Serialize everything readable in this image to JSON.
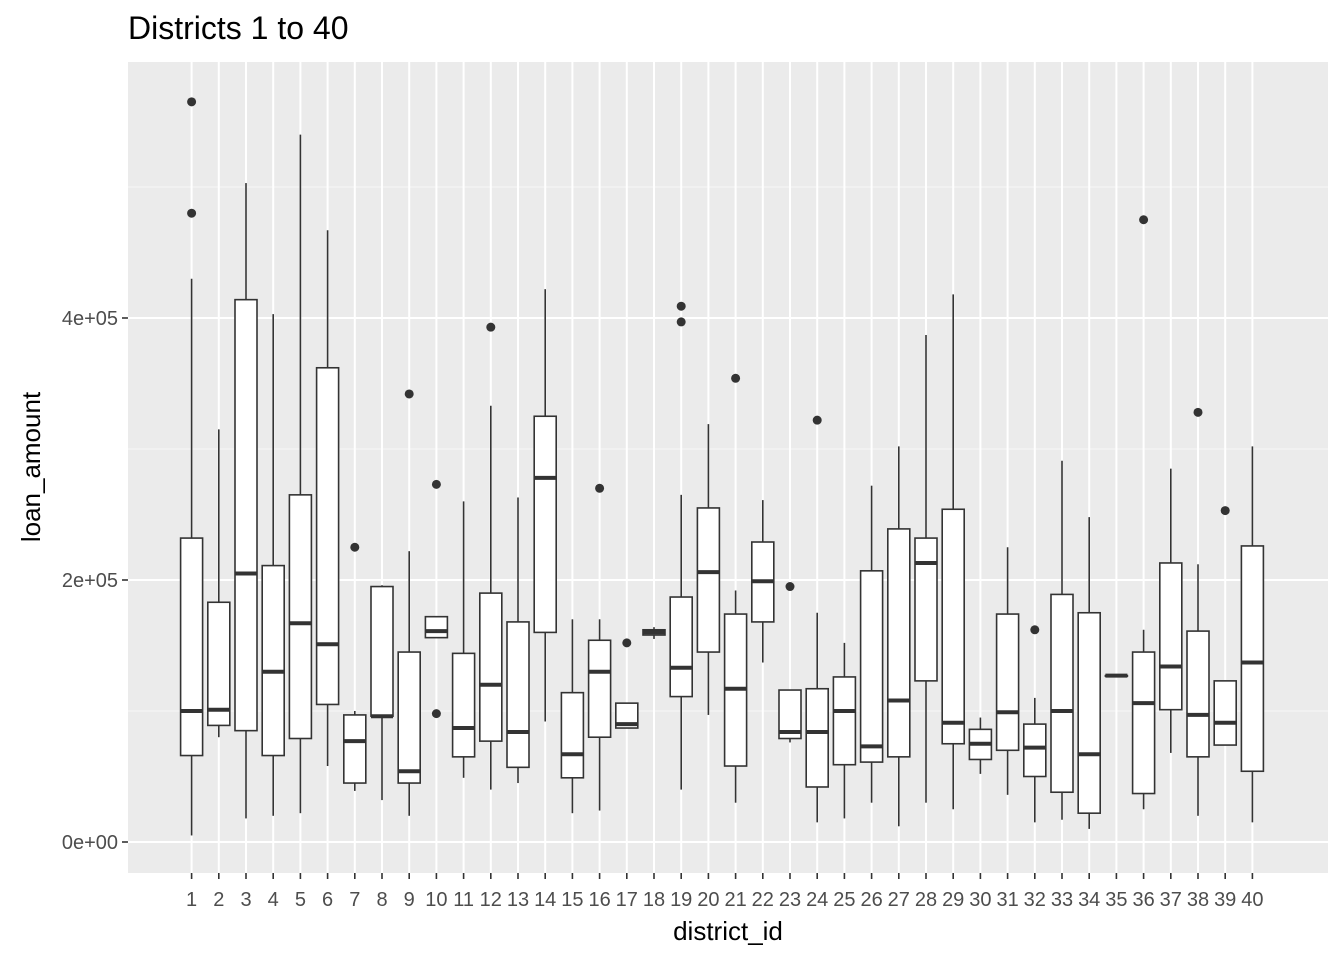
{
  "chart_data": {
    "type": "boxplot",
    "title": "Districts 1 to 40",
    "xlabel": "district_id",
    "ylabel": "loan_amount",
    "ylim": [
      -25000,
      600000
    ],
    "y_ticks": [
      0,
      200000,
      400000
    ],
    "y_tick_labels": [
      "0e+00",
      "2e+05",
      "4e+05"
    ],
    "grid": true,
    "categories": [
      "1",
      "2",
      "3",
      "4",
      "5",
      "6",
      "7",
      "8",
      "9",
      "10",
      "11",
      "12",
      "13",
      "14",
      "15",
      "16",
      "17",
      "18",
      "19",
      "20",
      "21",
      "22",
      "23",
      "24",
      "25",
      "26",
      "27",
      "28",
      "29",
      "30",
      "31",
      "32",
      "33",
      "34",
      "35",
      "36",
      "37",
      "38",
      "39",
      "40"
    ],
    "boxes": [
      {
        "min": 5000,
        "q1": 66000,
        "median": 100000,
        "q3": 232000,
        "max": 430000,
        "outliers": [
          480000,
          565000
        ]
      },
      {
        "min": 80000,
        "q1": 89000,
        "median": 101000,
        "q3": 183000,
        "max": 315000,
        "outliers": []
      },
      {
        "min": 18000,
        "q1": 85000,
        "median": 205000,
        "q3": 414000,
        "max": 503000,
        "outliers": []
      },
      {
        "min": 20000,
        "q1": 66000,
        "median": 130000,
        "q3": 211000,
        "max": 403000,
        "outliers": []
      },
      {
        "min": 22000,
        "q1": 79000,
        "median": 167000,
        "q3": 265000,
        "max": 540000,
        "outliers": []
      },
      {
        "min": 58000,
        "q1": 105000,
        "median": 151000,
        "q3": 362000,
        "max": 467000,
        "outliers": []
      },
      {
        "min": 39000,
        "q1": 45000,
        "median": 77000,
        "q3": 97000,
        "max": 100000,
        "outliers": [
          225000
        ]
      },
      {
        "min": 32000,
        "q1": 96000,
        "median": 96000,
        "q3": 195000,
        "max": 196000,
        "outliers": []
      },
      {
        "min": 20000,
        "q1": 45000,
        "median": 54000,
        "q3": 145000,
        "max": 222000,
        "outliers": [
          342000
        ]
      },
      {
        "min": 156000,
        "q1": 156000,
        "median": 161000,
        "q3": 172000,
        "max": 172000,
        "outliers": [
          98000,
          273000
        ]
      },
      {
        "min": 49000,
        "q1": 65000,
        "median": 87000,
        "q3": 144000,
        "max": 260000,
        "outliers": []
      },
      {
        "min": 40000,
        "q1": 77000,
        "median": 120000,
        "q3": 190000,
        "max": 333000,
        "outliers": [
          393000
        ]
      },
      {
        "min": 45000,
        "q1": 57000,
        "median": 84000,
        "q3": 168000,
        "max": 263000,
        "outliers": []
      },
      {
        "min": 92000,
        "q1": 160000,
        "median": 278000,
        "q3": 325000,
        "max": 422000,
        "outliers": []
      },
      {
        "min": 22000,
        "q1": 49000,
        "median": 67000,
        "q3": 114000,
        "max": 170000,
        "outliers": []
      },
      {
        "min": 24000,
        "q1": 80000,
        "median": 130000,
        "q3": 154000,
        "max": 170000,
        "outliers": [
          270000
        ]
      },
      {
        "min": 87000,
        "q1": 87000,
        "median": 90000,
        "q3": 106000,
        "max": 106000,
        "outliers": [
          152000
        ]
      },
      {
        "min": 155000,
        "q1": 158000,
        "median": 160000,
        "q3": 162000,
        "max": 164000,
        "outliers": []
      },
      {
        "min": 40000,
        "q1": 111000,
        "median": 133000,
        "q3": 187000,
        "max": 265000,
        "outliers": [
          397000,
          409000
        ]
      },
      {
        "min": 97000,
        "q1": 145000,
        "median": 206000,
        "q3": 255000,
        "max": 319000,
        "outliers": []
      },
      {
        "min": 30000,
        "q1": 58000,
        "median": 117000,
        "q3": 174000,
        "max": 192000,
        "outliers": [
          354000
        ]
      },
      {
        "min": 137000,
        "q1": 168000,
        "median": 199000,
        "q3": 229000,
        "max": 261000,
        "outliers": []
      },
      {
        "min": 76000,
        "q1": 79000,
        "median": 84000,
        "q3": 116000,
        "max": 116000,
        "outliers": [
          195000
        ]
      },
      {
        "min": 15000,
        "q1": 42000,
        "median": 84000,
        "q3": 117000,
        "max": 175000,
        "outliers": [
          322000
        ]
      },
      {
        "min": 18000,
        "q1": 59000,
        "median": 100000,
        "q3": 126000,
        "max": 152000,
        "outliers": []
      },
      {
        "min": 30000,
        "q1": 61000,
        "median": 73000,
        "q3": 207000,
        "max": 272000,
        "outliers": []
      },
      {
        "min": 12000,
        "q1": 65000,
        "median": 108000,
        "q3": 239000,
        "max": 302000,
        "outliers": []
      },
      {
        "min": 30000,
        "q1": 123000,
        "median": 213000,
        "q3": 232000,
        "max": 387000,
        "outliers": []
      },
      {
        "min": 25000,
        "q1": 75000,
        "median": 91000,
        "q3": 254000,
        "max": 418000,
        "outliers": []
      },
      {
        "min": 52000,
        "q1": 63000,
        "median": 75000,
        "q3": 86000,
        "max": 95000,
        "outliers": []
      },
      {
        "min": 36000,
        "q1": 70000,
        "median": 99000,
        "q3": 174000,
        "max": 225000,
        "outliers": []
      },
      {
        "min": 15000,
        "q1": 50000,
        "median": 72000,
        "q3": 90000,
        "max": 110000,
        "outliers": [
          162000
        ]
      },
      {
        "min": 17000,
        "q1": 38000,
        "median": 100000,
        "q3": 189000,
        "max": 291000,
        "outliers": []
      },
      {
        "min": 10000,
        "q1": 22000,
        "median": 67000,
        "q3": 175000,
        "max": 248000,
        "outliers": []
      },
      {
        "min": 127000,
        "q1": 127000,
        "median": 127000,
        "q3": 127000,
        "max": 127000,
        "outliers": []
      },
      {
        "min": 25000,
        "q1": 37000,
        "median": 106000,
        "q3": 145000,
        "max": 162000,
        "outliers": [
          475000
        ]
      },
      {
        "min": 68000,
        "q1": 101000,
        "median": 134000,
        "q3": 213000,
        "max": 285000,
        "outliers": []
      },
      {
        "min": 20000,
        "q1": 65000,
        "median": 97000,
        "q3": 161000,
        "max": 212000,
        "outliers": [
          328000
        ]
      },
      {
        "min": 74000,
        "q1": 74000,
        "median": 91000,
        "q3": 123000,
        "max": 123000,
        "outliers": [
          253000
        ]
      },
      {
        "min": 15000,
        "q1": 54000,
        "median": 137000,
        "q3": 226000,
        "max": 302000,
        "outliers": []
      }
    ]
  }
}
